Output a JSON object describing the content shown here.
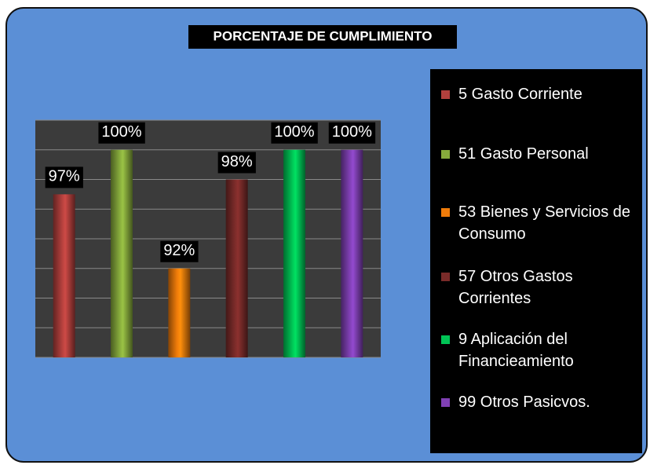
{
  "chart_data": {
    "type": "bar",
    "title": "PORCENTAJE DE CUMPLIMIENTO",
    "categories": [
      "5 Gasto Corriente",
      "51 Gasto Personal",
      "53 Bienes y Servicios de Consumo",
      "57 Otros Gastos Corrientes",
      "9 Aplicación del Financieamiento",
      "99 Otros Pasicvos."
    ],
    "values": [
      97,
      100,
      92,
      98,
      100,
      100
    ],
    "value_labels": [
      "97%",
      "100%",
      "92%",
      "98%",
      "100%",
      "100%"
    ],
    "colors": [
      "#b3403d",
      "#86aa3c",
      "#f07c0a",
      "#7a2b29",
      "#00c455",
      "#8040b4"
    ],
    "ylim": [
      86,
      102
    ],
    "yticks": [
      86,
      88,
      90,
      92,
      94,
      96,
      98,
      100,
      102
    ],
    "grid": true
  }
}
